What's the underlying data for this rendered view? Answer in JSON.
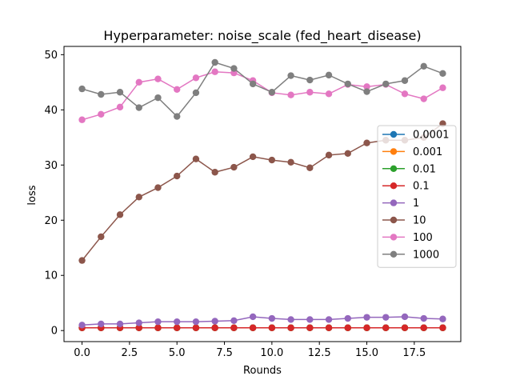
{
  "chart_data": {
    "type": "line",
    "title": "Hyperparameter: noise_scale (fed_heart_disease)",
    "xlabel": "Rounds",
    "ylabel": "loss",
    "xlim": [
      -0.95,
      19.95
    ],
    "ylim": [
      -2.0,
      51.5
    ],
    "xticks": [
      0.0,
      2.5,
      5.0,
      7.5,
      10.0,
      12.5,
      15.0,
      17.5
    ],
    "xtick_labels": [
      "0.0",
      "2.5",
      "5.0",
      "7.5",
      "10.0",
      "12.5",
      "15.0",
      "17.5"
    ],
    "yticks": [
      0,
      10,
      20,
      30,
      40,
      50
    ],
    "ytick_labels": [
      "0",
      "10",
      "20",
      "30",
      "40",
      "50"
    ],
    "grid": false,
    "legend_position": "right",
    "x": [
      0,
      1,
      2,
      3,
      4,
      5,
      6,
      7,
      8,
      9,
      10,
      11,
      12,
      13,
      14,
      15,
      16,
      17,
      18,
      19
    ],
    "series": [
      {
        "name": "0.0001",
        "color": "#1f77b4",
        "values": [
          0.5,
          0.5,
          0.5,
          0.5,
          0.5,
          0.5,
          0.5,
          0.5,
          0.5,
          0.5,
          0.5,
          0.5,
          0.5,
          0.5,
          0.5,
          0.5,
          0.5,
          0.5,
          0.5,
          0.5
        ]
      },
      {
        "name": "0.001",
        "color": "#ff7f0e",
        "values": [
          0.5,
          0.5,
          0.5,
          0.5,
          0.5,
          0.5,
          0.5,
          0.5,
          0.5,
          0.5,
          0.5,
          0.5,
          0.5,
          0.5,
          0.5,
          0.5,
          0.5,
          0.5,
          0.5,
          0.5
        ]
      },
      {
        "name": "0.01",
        "color": "#2ca02c",
        "values": [
          0.5,
          0.5,
          0.5,
          0.5,
          0.5,
          0.5,
          0.5,
          0.5,
          0.5,
          0.5,
          0.5,
          0.5,
          0.5,
          0.5,
          0.5,
          0.5,
          0.5,
          0.5,
          0.5,
          0.5
        ]
      },
      {
        "name": "0.1",
        "color": "#d62728",
        "values": [
          0.5,
          0.5,
          0.5,
          0.5,
          0.5,
          0.5,
          0.5,
          0.5,
          0.5,
          0.5,
          0.5,
          0.5,
          0.5,
          0.5,
          0.5,
          0.5,
          0.5,
          0.5,
          0.5,
          0.5
        ]
      },
      {
        "name": "1",
        "color": "#9467bd",
        "values": [
          1.0,
          1.2,
          1.2,
          1.4,
          1.6,
          1.6,
          1.6,
          1.7,
          1.8,
          2.5,
          2.2,
          2.0,
          2.0,
          2.0,
          2.2,
          2.4,
          2.4,
          2.5,
          2.2,
          2.1
        ]
      },
      {
        "name": "10",
        "color": "#8c564b",
        "values": [
          12.7,
          17.0,
          21.0,
          24.2,
          25.9,
          28.0,
          31.1,
          28.7,
          29.6,
          31.5,
          30.9,
          30.5,
          29.5,
          31.8,
          32.1,
          34.0,
          34.5,
          34.5,
          35.0,
          37.5
        ]
      },
      {
        "name": "100",
        "color": "#e377c2",
        "values": [
          38.2,
          39.2,
          40.5,
          45.0,
          45.6,
          43.7,
          45.8,
          46.9,
          46.7,
          45.3,
          43.1,
          42.7,
          43.2,
          42.9,
          44.6,
          44.2,
          44.6,
          42.9,
          42.0,
          44.0
        ]
      },
      {
        "name": "1000",
        "color": "#7f7f7f",
        "values": [
          43.8,
          42.8,
          43.2,
          40.4,
          42.2,
          38.8,
          43.1,
          48.6,
          47.5,
          44.7,
          43.2,
          46.2,
          45.4,
          46.3,
          44.7,
          43.3,
          44.7,
          45.3,
          47.9,
          46.6
        ]
      }
    ]
  }
}
